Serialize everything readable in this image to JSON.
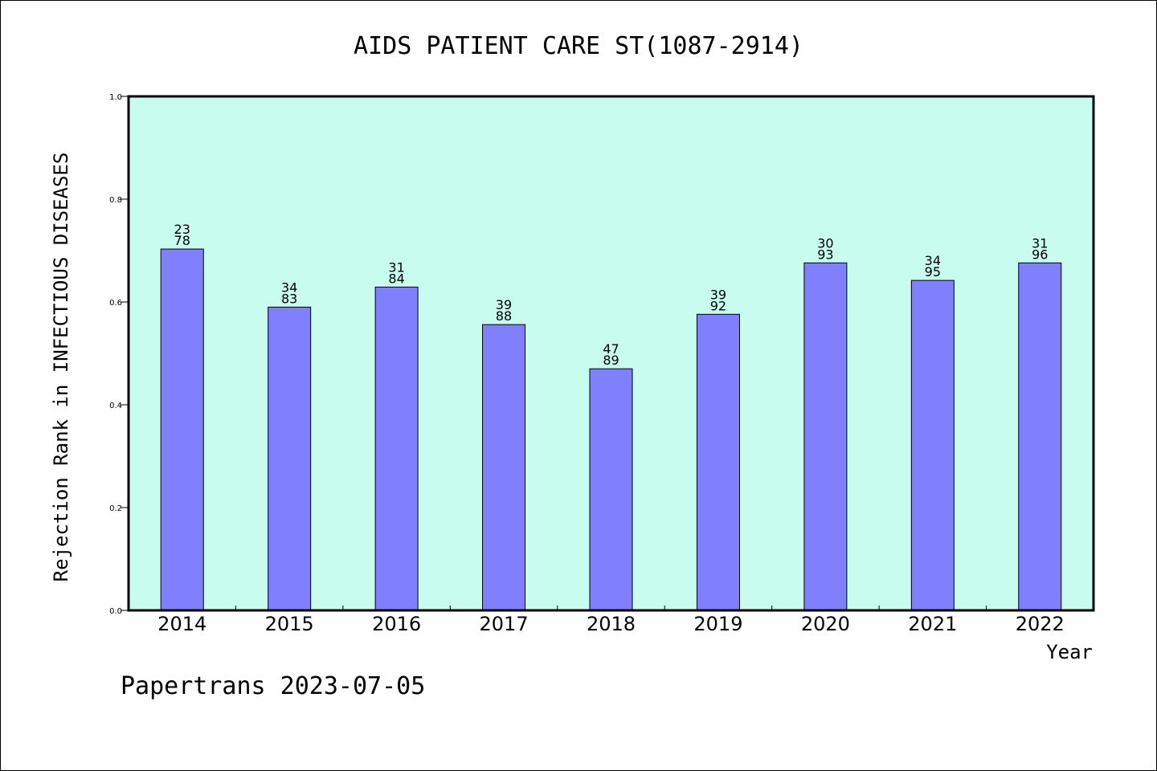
{
  "chart_data": {
    "type": "bar",
    "title": "AIDS PATIENT CARE ST(1087-2914)",
    "ylabel": "Rejection Rank in INFECTIOUS DISEASES",
    "xlabel": "Year",
    "ylim": [
      0,
      1.0
    ],
    "yticks": [
      "0.0",
      "0.2",
      "0.4",
      "0.6",
      "0.8",
      "1.0"
    ],
    "categories": [
      "2014",
      "2015",
      "2016",
      "2017",
      "2018",
      "2019",
      "2020",
      "2021",
      "2022"
    ],
    "values": [
      0.703,
      0.59,
      0.629,
      0.556,
      0.47,
      0.576,
      0.676,
      0.642,
      0.676
    ],
    "bar_labels": [
      [
        "23",
        "78"
      ],
      [
        "34",
        "83"
      ],
      [
        "31",
        "84"
      ],
      [
        "39",
        "88"
      ],
      [
        "47",
        "89"
      ],
      [
        "39",
        "92"
      ],
      [
        "30",
        "93"
      ],
      [
        "34",
        "95"
      ],
      [
        "31",
        "96"
      ]
    ],
    "grid": false,
    "colors": {
      "plot_background": "#c8fcee",
      "bar_fill": "#8080ff",
      "bar_edge": "#000000"
    }
  },
  "footer": {
    "text": "Papertrans 2023-07-05"
  }
}
